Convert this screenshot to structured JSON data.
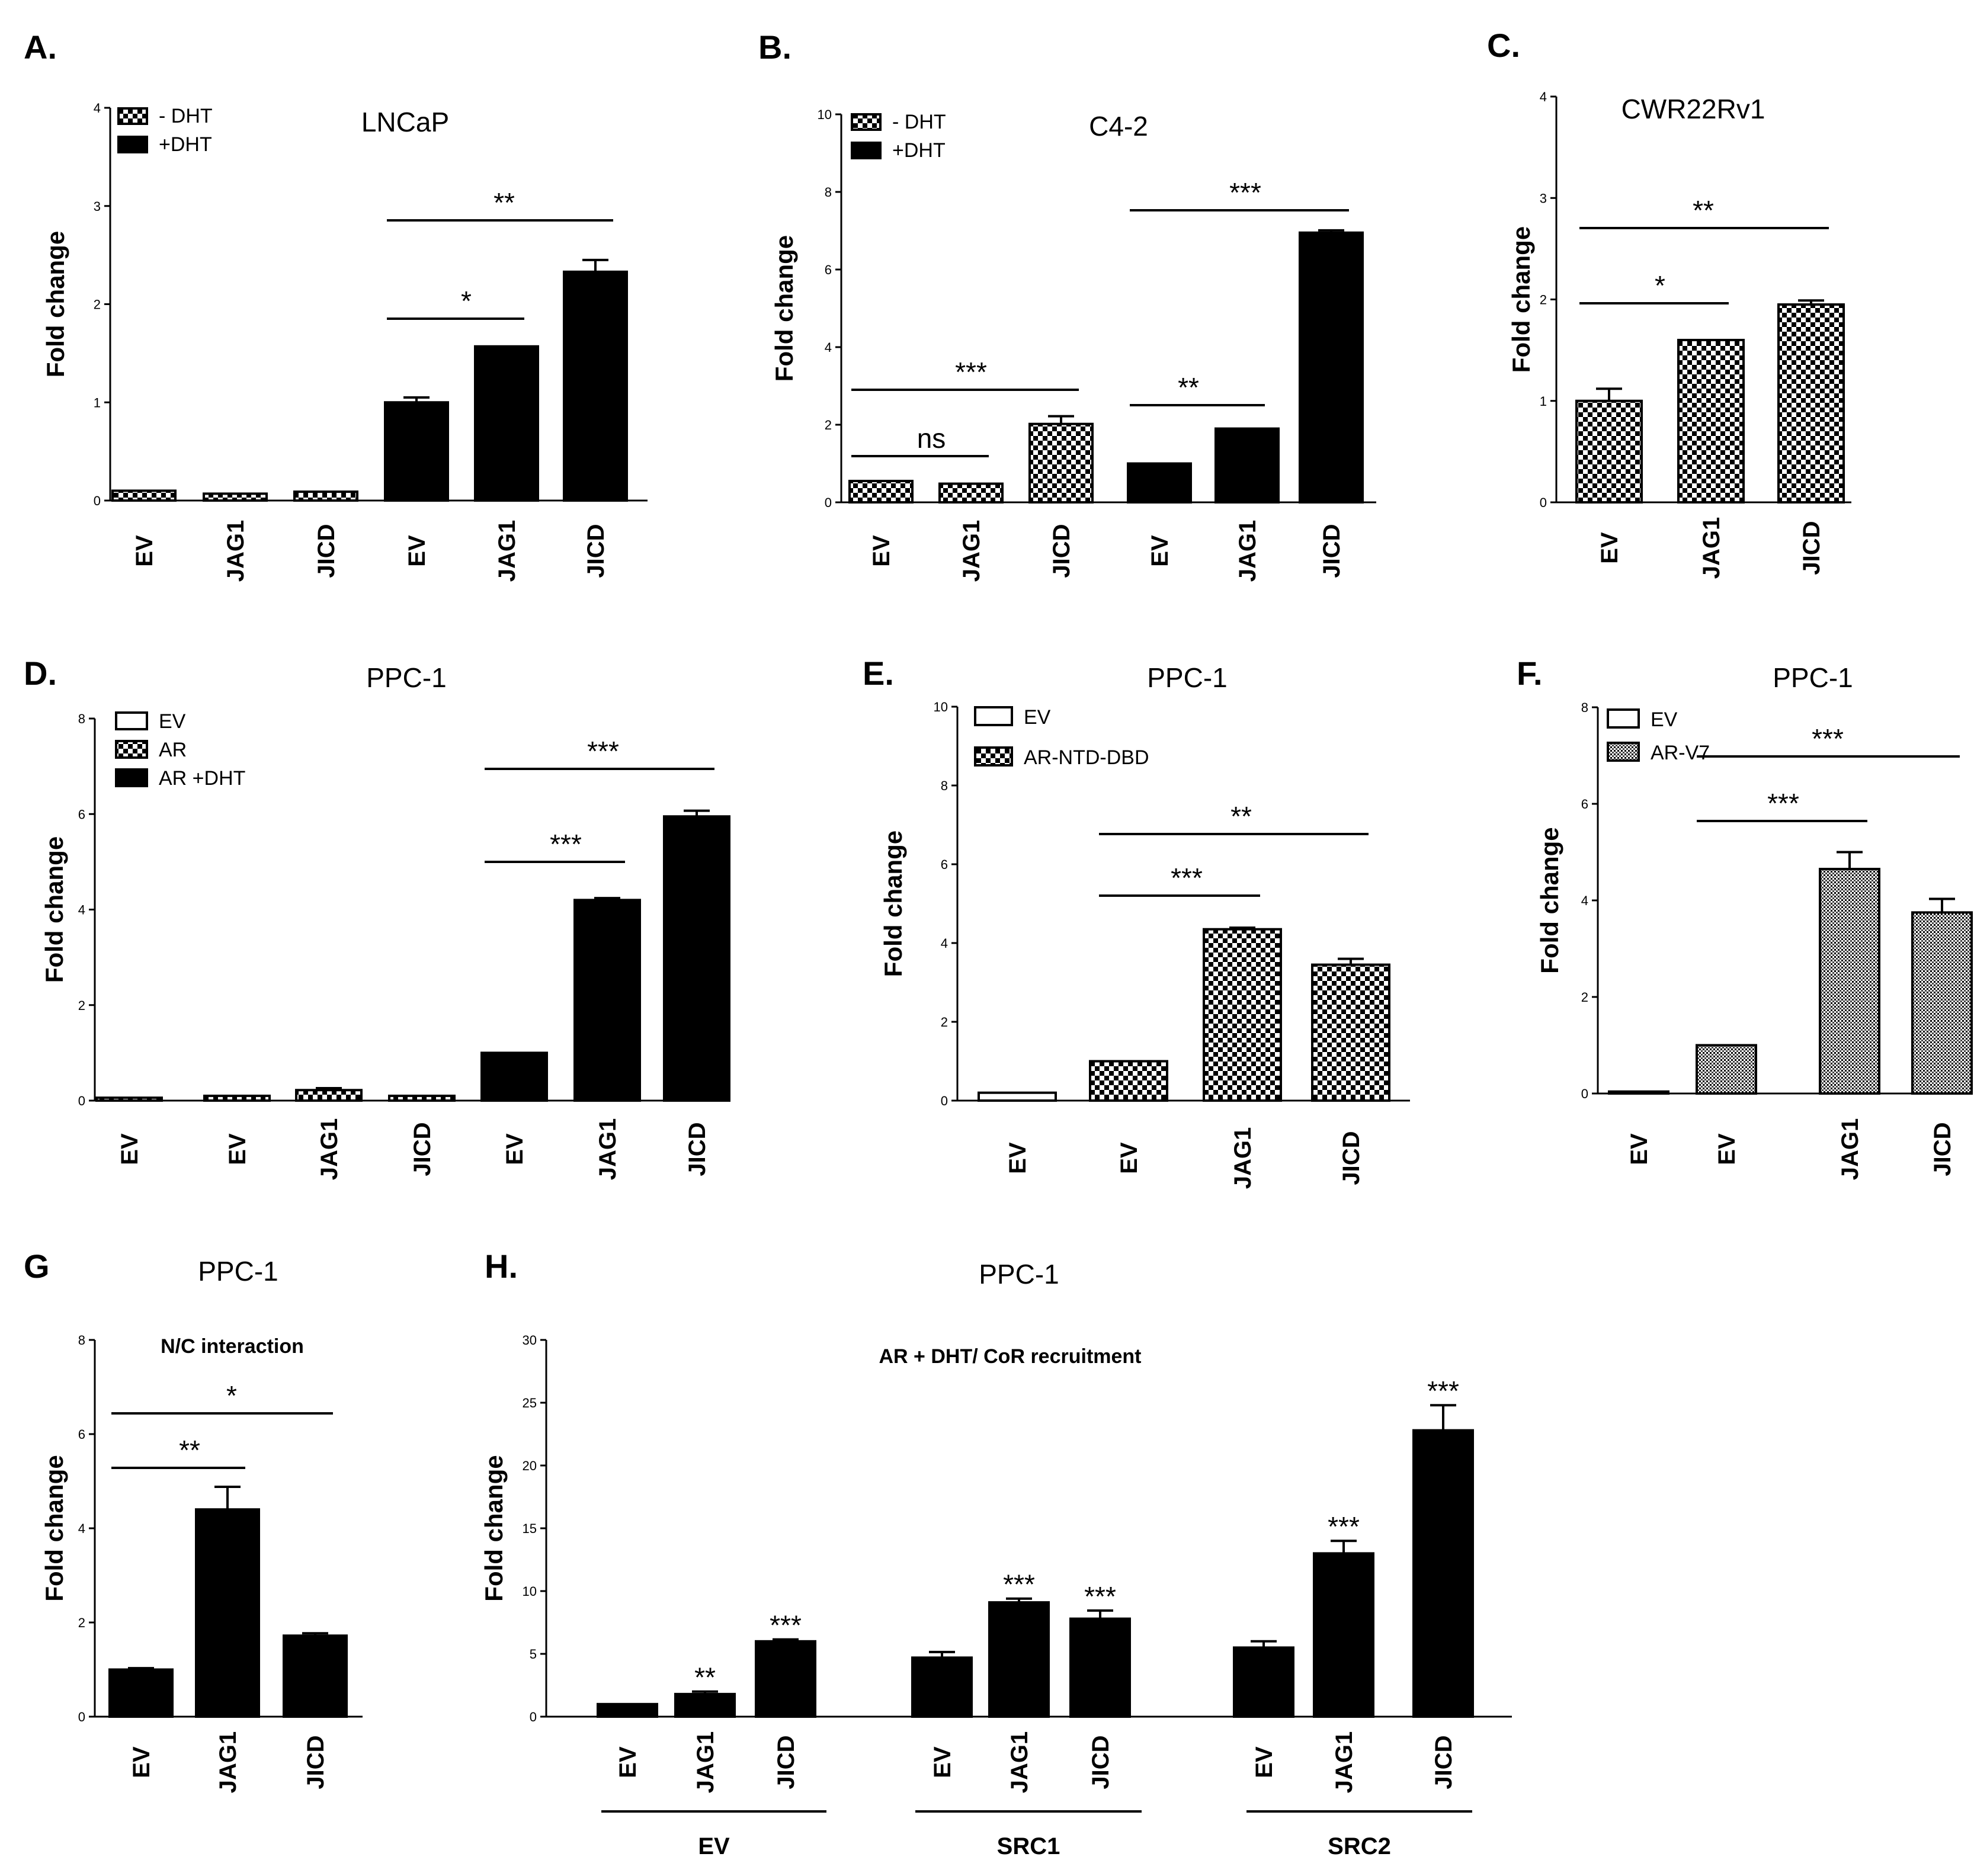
{
  "chart_data": [
    {
      "panel": "A.",
      "type": "bar",
      "title": "LNCaP",
      "ylabel": "Fold change",
      "ylim": [
        0,
        4
      ],
      "yticks": [
        "0",
        "1",
        "2",
        "3",
        "4"
      ],
      "legend": [
        {
          "name": "- DHT",
          "pattern": "check"
        },
        {
          "name": "+DHT",
          "pattern": "black"
        }
      ],
      "categories": [
        "EV",
        "JAG1",
        "JICD",
        "EV",
        "JAG1",
        "JICD"
      ],
      "values": [
        0.1,
        0.07,
        0.09,
        1.0,
        1.57,
        2.33
      ],
      "errors": [
        0.0,
        0.0,
        0.0,
        0.05,
        0.0,
        0.12
      ],
      "patterns": [
        "check",
        "check",
        "check",
        "black",
        "black",
        "black"
      ],
      "significance": [
        {
          "from": 3,
          "to": 4,
          "label": "*"
        },
        {
          "from": 3,
          "to": 5,
          "label": "**"
        }
      ]
    },
    {
      "panel": "B.",
      "type": "bar",
      "title": "C4-2",
      "ylabel": "Fold change",
      "ylim": [
        0,
        10
      ],
      "yticks": [
        "0",
        "2",
        "4",
        "6",
        "8",
        "10"
      ],
      "legend": [
        {
          "name": "- DHT",
          "pattern": "check"
        },
        {
          "name": "+DHT",
          "pattern": "black"
        }
      ],
      "categories": [
        "EV",
        "JAG1",
        "JICD",
        "EV",
        "JAG1",
        "JICD"
      ],
      "values": [
        0.55,
        0.48,
        2.02,
        1.0,
        1.9,
        6.95
      ],
      "errors": [
        0.0,
        0.0,
        0.2,
        0.0,
        0.0,
        0.06
      ],
      "patterns": [
        "check",
        "check",
        "check",
        "black",
        "black",
        "black"
      ],
      "significance": [
        {
          "from": 0,
          "to": 1,
          "label": "ns"
        },
        {
          "from": 0,
          "to": 2,
          "label": "***"
        },
        {
          "from": 3,
          "to": 4,
          "label": "**"
        },
        {
          "from": 3,
          "to": 5,
          "label": "***"
        }
      ]
    },
    {
      "panel": "C.",
      "type": "bar",
      "title": "CWR22Rv1",
      "ylabel": "Fold change",
      "ylim": [
        0,
        4
      ],
      "yticks": [
        "0",
        "1",
        "2",
        "3",
        "4"
      ],
      "legend": [],
      "categories": [
        "EV",
        "JAG1",
        "JICD"
      ],
      "values": [
        1.0,
        1.6,
        1.95
      ],
      "errors": [
        0.12,
        0.0,
        0.04
      ],
      "patterns": [
        "check",
        "check",
        "check"
      ],
      "significance": [
        {
          "from": 0,
          "to": 1,
          "label": "*"
        },
        {
          "from": 0,
          "to": 2,
          "label": "**"
        }
      ]
    },
    {
      "panel": "D.",
      "type": "bar",
      "title": "PPC-1",
      "ylabel": "Fold change",
      "ylim": [
        0,
        8
      ],
      "yticks": [
        "0",
        "2",
        "4",
        "6",
        "8"
      ],
      "legend": [
        {
          "name": "EV",
          "pattern": "white"
        },
        {
          "name": "AR",
          "pattern": "check"
        },
        {
          "name": "AR +DHT",
          "pattern": "black"
        }
      ],
      "categories": [
        "EV",
        "EV",
        "JAG1",
        "JICD",
        "EV",
        "JAG1",
        "JICD"
      ],
      "values": [
        0.06,
        0.1,
        0.22,
        0.1,
        1.0,
        4.2,
        5.95
      ],
      "errors": [
        0.0,
        0.0,
        0.04,
        0.0,
        0.0,
        0.04,
        0.12
      ],
      "patterns": [
        "check",
        "check",
        "check",
        "check",
        "black",
        "black",
        "black"
      ],
      "significance": [
        {
          "from": 4,
          "to": 5,
          "label": "***"
        },
        {
          "from": 4,
          "to": 6,
          "label": "***"
        }
      ]
    },
    {
      "panel": "E.",
      "type": "bar",
      "title": "PPC-1",
      "ylabel": "Fold change",
      "ylim": [
        0,
        10
      ],
      "yticks": [
        "0",
        "2",
        "4",
        "6",
        "8",
        "10"
      ],
      "legend": [
        {
          "name": "EV",
          "pattern": "white"
        },
        {
          "name": "AR-NTD-DBD",
          "pattern": "check"
        }
      ],
      "categories": [
        "EV",
        "EV",
        "JAG1",
        "JICD"
      ],
      "values": [
        0.2,
        1.0,
        4.35,
        3.45
      ],
      "errors": [
        0.0,
        0.0,
        0.04,
        0.15
      ],
      "patterns": [
        "white",
        "check",
        "check",
        "check"
      ],
      "significance": [
        {
          "from": 1,
          "to": 2,
          "label": "***"
        },
        {
          "from": 1,
          "to": 3,
          "label": "**"
        }
      ]
    },
    {
      "panel": "F.",
      "type": "bar",
      "title": "PPC-1",
      "ylabel": "Fold change",
      "ylim": [
        0,
        8
      ],
      "yticks": [
        "0",
        "2",
        "4",
        "6",
        "8"
      ],
      "legend": [
        {
          "name": "EV",
          "pattern": "white"
        },
        {
          "name": "AR-V7",
          "pattern": "fine"
        }
      ],
      "categories": [
        "EV",
        "EV",
        "JAG1",
        "JICD"
      ],
      "values": [
        0.04,
        1.0,
        4.65,
        3.75
      ],
      "errors": [
        0.0,
        0.0,
        0.35,
        0.28
      ],
      "patterns": [
        "white",
        "fine",
        "fine",
        "fine"
      ],
      "significance": [
        {
          "from": 1,
          "to": 2,
          "label": "***"
        },
        {
          "from": 1,
          "to": 3,
          "label": "***"
        }
      ]
    },
    {
      "panel": "G",
      "type": "bar",
      "title": "PPC-1",
      "subtitle": "N/C interaction",
      "ylabel": "Fold change",
      "ylim": [
        0,
        8
      ],
      "yticks": [
        "0",
        "2",
        "4",
        "6",
        "8"
      ],
      "legend": [],
      "categories": [
        "EV",
        "JAG1",
        "JICD"
      ],
      "values": [
        1.0,
        4.4,
        1.72
      ],
      "errors": [
        0.03,
        0.48,
        0.05
      ],
      "patterns": [
        "black",
        "black",
        "black"
      ],
      "significance": [
        {
          "from": 0,
          "to": 1,
          "label": "**"
        },
        {
          "from": 0,
          "to": 2,
          "label": "*"
        }
      ]
    },
    {
      "panel": "H.",
      "type": "bar",
      "title": "PPC-1",
      "subtitle": "AR + DHT/ CoR recruitment",
      "ylabel": "Fold change",
      "ylim": [
        0,
        30
      ],
      "yticks": [
        "0",
        "5",
        "10",
        "15",
        "20",
        "25",
        "30"
      ],
      "legend": [],
      "categories": [
        "EV",
        "JAG1",
        "JICD",
        "EV",
        "JAG1",
        "JICD",
        "EV",
        "JAG1",
        "JICD"
      ],
      "groups": [
        "EV",
        "SRC1",
        "SRC2"
      ],
      "values": [
        1.0,
        1.8,
        6.0,
        4.7,
        9.1,
        7.8,
        5.5,
        13.0,
        22.8
      ],
      "errors": [
        0.0,
        0.2,
        0.15,
        0.45,
        0.3,
        0.65,
        0.5,
        1.0,
        2.0
      ],
      "patterns": [
        "black",
        "black",
        "black",
        "black",
        "black",
        "black",
        "black",
        "black",
        "black"
      ],
      "bar_labels": [
        "",
        "**",
        "***",
        "",
        "***",
        "***",
        "",
        "***",
        "***"
      ],
      "significance": []
    }
  ]
}
